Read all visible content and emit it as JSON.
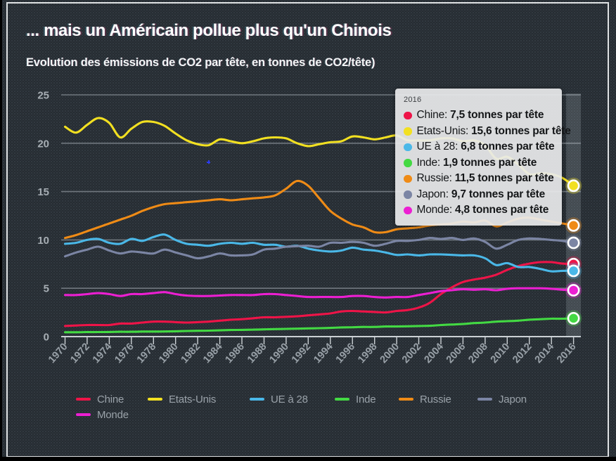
{
  "window": {
    "background": "#000000",
    "panel_bg": "#262c32",
    "frame_color": "#dfe2e4"
  },
  "header": {
    "title": "... mais un Américain pollue plus qu'un Chinois",
    "subtitle": "Evolution des émissions de CO2 par tête, en tonnes de CO2/tête)"
  },
  "chart_data": {
    "type": "line",
    "x_start": 1970,
    "x_end": 2016,
    "xticks": [
      "1970",
      "1972",
      "1974",
      "1976",
      "1978",
      "1980",
      "1982",
      "1984",
      "1986",
      "1988",
      "1990",
      "1992",
      "1994",
      "1996",
      "1998",
      "2000",
      "2002",
      "2004",
      "2006",
      "2008",
      "2010",
      "2012",
      "2014",
      "2016"
    ],
    "yticks": [
      "0",
      "5",
      "10",
      "15",
      "20",
      "25"
    ],
    "ylim": [
      0,
      25
    ],
    "grid": "horizontal",
    "legend_position": "bottom",
    "highlight_year": 2016,
    "axis_color": "#9aa1a8",
    "grid_color": "#7d848b",
    "series": [
      {
        "name": "Chine",
        "color": "#ee1448",
        "values": [
          1.1,
          1.15,
          1.2,
          1.2,
          1.2,
          1.35,
          1.35,
          1.45,
          1.55,
          1.55,
          1.5,
          1.45,
          1.5,
          1.55,
          1.65,
          1.75,
          1.8,
          1.9,
          2.0,
          2.0,
          2.05,
          2.1,
          2.2,
          2.3,
          2.4,
          2.6,
          2.65,
          2.6,
          2.55,
          2.5,
          2.65,
          2.75,
          3.0,
          3.5,
          4.4,
          5.1,
          5.65,
          5.9,
          6.1,
          6.4,
          6.9,
          7.3,
          7.55,
          7.7,
          7.7,
          7.55,
          7.5
        ]
      },
      {
        "name": "Etats-Unis",
        "color": "#f2e021",
        "values": [
          21.7,
          21.1,
          21.9,
          22.6,
          22.1,
          20.6,
          21.5,
          22.2,
          22.2,
          21.8,
          21.0,
          20.3,
          19.9,
          19.8,
          20.4,
          20.2,
          20.0,
          20.2,
          20.5,
          20.6,
          20.5,
          20.0,
          19.7,
          19.9,
          20.1,
          20.2,
          20.7,
          20.6,
          20.4,
          20.6,
          20.8,
          20.3,
          20.3,
          20.3,
          20.5,
          20.5,
          20.2,
          20.3,
          19.8,
          18.4,
          18.6,
          17.8,
          16.8,
          16.9,
          16.8,
          16.4,
          15.6
        ]
      },
      {
        "name": "UE à 28",
        "color": "#4ab8e8",
        "values": [
          9.6,
          9.7,
          10.0,
          10.1,
          9.7,
          9.6,
          10.1,
          9.9,
          10.3,
          10.55,
          10.0,
          9.6,
          9.5,
          9.4,
          9.6,
          9.7,
          9.6,
          9.7,
          9.5,
          9.5,
          9.3,
          9.4,
          9.1,
          8.9,
          8.8,
          8.9,
          9.2,
          9.0,
          8.9,
          8.7,
          8.45,
          8.5,
          8.4,
          8.5,
          8.5,
          8.45,
          8.4,
          8.4,
          8.1,
          7.4,
          7.6,
          7.2,
          7.2,
          7.0,
          6.75,
          6.8,
          6.8
        ]
      },
      {
        "name": "Inde",
        "color": "#43d943",
        "values": [
          0.45,
          0.45,
          0.47,
          0.47,
          0.48,
          0.5,
          0.5,
          0.52,
          0.52,
          0.53,
          0.55,
          0.58,
          0.6,
          0.62,
          0.65,
          0.68,
          0.7,
          0.72,
          0.75,
          0.78,
          0.8,
          0.82,
          0.85,
          0.87,
          0.9,
          0.95,
          0.97,
          1.0,
          1.0,
          1.05,
          1.05,
          1.07,
          1.1,
          1.12,
          1.2,
          1.25,
          1.3,
          1.4,
          1.45,
          1.55,
          1.6,
          1.65,
          1.75,
          1.8,
          1.85,
          1.85,
          1.9
        ]
      },
      {
        "name": "Russie",
        "color": "#ef8b16",
        "values": [
          10.2,
          10.5,
          10.9,
          11.3,
          11.7,
          12.1,
          12.5,
          13.0,
          13.4,
          13.7,
          13.8,
          13.9,
          14.0,
          14.1,
          14.2,
          14.1,
          14.2,
          14.3,
          14.4,
          14.6,
          15.3,
          16.1,
          15.6,
          14.3,
          13.0,
          12.2,
          11.6,
          11.3,
          10.8,
          10.8,
          11.1,
          11.2,
          11.3,
          11.5,
          11.6,
          11.7,
          11.9,
          11.8,
          12.0,
          11.4,
          11.8,
          12.2,
          12.3,
          12.1,
          11.9,
          11.7,
          11.5
        ]
      },
      {
        "name": "Japon",
        "color": "#7b85a4",
        "values": [
          8.3,
          8.7,
          9.0,
          9.3,
          8.9,
          8.6,
          8.8,
          8.7,
          8.6,
          9.0,
          8.7,
          8.4,
          8.1,
          8.3,
          8.6,
          8.4,
          8.4,
          8.5,
          9.0,
          9.1,
          9.3,
          9.35,
          9.4,
          9.3,
          9.7,
          9.7,
          9.8,
          9.7,
          9.4,
          9.6,
          9.9,
          9.9,
          10.0,
          10.2,
          10.1,
          10.2,
          10.0,
          10.15,
          9.8,
          9.1,
          9.5,
          10.0,
          10.15,
          10.1,
          10.0,
          9.9,
          9.7
        ]
      },
      {
        "name": "Monde",
        "color": "#ec1fd2",
        "values": [
          4.3,
          4.3,
          4.4,
          4.5,
          4.4,
          4.2,
          4.4,
          4.4,
          4.5,
          4.6,
          4.4,
          4.25,
          4.2,
          4.2,
          4.25,
          4.3,
          4.3,
          4.3,
          4.4,
          4.4,
          4.3,
          4.2,
          4.1,
          4.1,
          4.1,
          4.1,
          4.2,
          4.2,
          4.1,
          4.05,
          4.1,
          4.1,
          4.3,
          4.5,
          4.7,
          4.8,
          4.9,
          4.85,
          4.9,
          4.8,
          4.95,
          5.0,
          5.0,
          5.0,
          4.95,
          4.85,
          4.8
        ]
      }
    ]
  },
  "tooltip": {
    "year": "2016",
    "unit": "tonnes par tête",
    "rows": [
      {
        "label": "Chine",
        "value": "7,5"
      },
      {
        "label": "Etats-Unis",
        "value": "15,6"
      },
      {
        "label": "UE à 28",
        "value": "6,8"
      },
      {
        "label": "Inde",
        "value": "1,9"
      },
      {
        "label": "Russie",
        "value": "11,5"
      },
      {
        "label": "Japon",
        "value": "9,7"
      },
      {
        "label": "Monde",
        "value": "4,8"
      }
    ]
  },
  "legend": {
    "labels": [
      "Chine",
      "Etats-Unis",
      "UE à 28",
      "Inde",
      "Russie",
      "Japon",
      "Monde"
    ]
  }
}
